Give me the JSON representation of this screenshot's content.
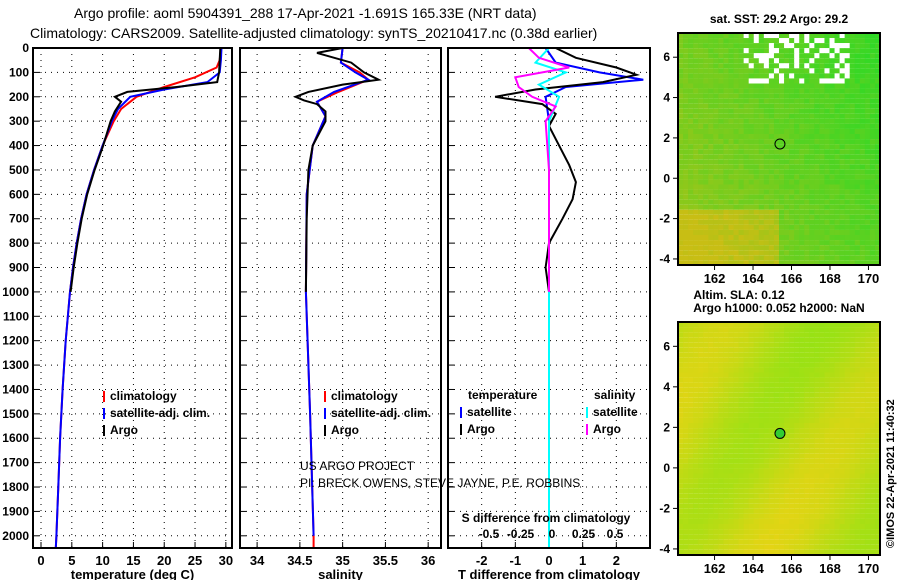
{
  "header": {
    "line1": "Argo profile: aoml 5904391_288 17-Apr-2021 -1.691S 165.33E (NRT data)",
    "line2": "Climatology: CARS2009. Satellite-adjusted climatology: synTS_20210417.nc (0.38d earlier)"
  },
  "credit": "©IMOS 22-Apr-2021 11:40:32",
  "project": {
    "line1": "US ARGO PROJECT",
    "line2": "PI: BRECK OWENS, STEVE JAYNE, P.E. ROBBINS"
  },
  "colors": {
    "climatology": "#ff0000",
    "satellite": "#0000ff",
    "argo": "#000000",
    "sat_s": "#00ffff",
    "argo_s": "#ff00ff"
  },
  "chart_data": [
    {
      "type": "line",
      "name": "temperature",
      "xlabel": "temperature (deg C)",
      "xlim": [
        -1.3,
        31
      ],
      "ylim": [
        2050,
        0
      ],
      "xticks": [
        0,
        5,
        10,
        15,
        20,
        25,
        30
      ],
      "yticks": [
        0,
        100,
        200,
        300,
        400,
        500,
        600,
        700,
        800,
        900,
        1000,
        1100,
        1200,
        1300,
        1400,
        1500,
        1600,
        1700,
        1800,
        1900,
        2000
      ],
      "legend": [
        "climatology",
        "satellite-adj. clim.",
        "Argo"
      ],
      "series": [
        {
          "name": "climatology",
          "color": "#ff0000",
          "depth": [
            0,
            50,
            80,
            120,
            160,
            200,
            250,
            300,
            400,
            500,
            600,
            700,
            800,
            900,
            1000,
            1200,
            1400,
            1600,
            1800,
            2000,
            2050
          ],
          "values": [
            29.2,
            29,
            28.5,
            25,
            20,
            15.5,
            13,
            11.8,
            10,
            8.6,
            7.4,
            6.5,
            5.8,
            5.2,
            4.7,
            4,
            3.5,
            3.1,
            2.8,
            2.5,
            2.4
          ]
        },
        {
          "name": "satellite-adj. clim.",
          "color": "#0000ff",
          "depth": [
            0,
            50,
            100,
            140,
            170,
            200,
            250,
            300,
            400,
            500,
            600,
            700,
            800,
            900,
            1000,
            1200,
            1400,
            1600,
            1800,
            2000,
            2050
          ],
          "values": [
            29.3,
            29.2,
            29,
            27,
            20,
            14.5,
            12.5,
            11.5,
            10,
            8.6,
            7.4,
            6.5,
            5.8,
            5.2,
            4.7,
            4,
            3.5,
            3.1,
            2.8,
            2.5,
            2.4
          ]
        },
        {
          "name": "Argo",
          "color": "#000000",
          "depth": [
            0,
            50,
            100,
            140,
            160,
            180,
            200,
            220,
            260,
            300,
            400,
            500,
            600,
            700,
            800,
            900,
            1000
          ],
          "values": [
            29.1,
            29,
            28.9,
            28.6,
            22,
            14,
            12,
            13,
            12,
            11.3,
            10.1,
            8.7,
            7.5,
            6.6,
            5.9,
            5.3,
            4.8
          ]
        }
      ]
    },
    {
      "type": "line",
      "name": "salinity",
      "xlabel": "salinity",
      "xlim": [
        33.8,
        36.15
      ],
      "ylim": [
        2050,
        0
      ],
      "xticks": [
        34,
        34.5,
        35,
        35.5,
        36
      ],
      "legend": [
        "climatology",
        "satellite-adj. clim.",
        "Argo"
      ],
      "series": [
        {
          "name": "climatology",
          "color": "#ff0000",
          "depth": [
            0,
            60,
            100,
            130,
            180,
            220,
            280,
            400,
            600,
            1000,
            1500,
            2000,
            2050
          ],
          "values": [
            35.0,
            34.98,
            35.2,
            35.3,
            34.95,
            34.7,
            34.8,
            34.65,
            34.58,
            34.57,
            34.62,
            34.66,
            34.66
          ]
        },
        {
          "name": "satellite-adj. clim.",
          "color": "#0000ff",
          "depth": [
            0,
            60,
            100,
            130,
            180,
            220,
            280,
            400,
            600,
            1000,
            1500,
            2000
          ],
          "values": [
            35.0,
            34.98,
            35.15,
            35.3,
            34.9,
            34.7,
            34.8,
            34.65,
            34.58,
            34.57,
            34.62,
            34.66
          ]
        },
        {
          "name": "Argo",
          "color": "#000000",
          "depth": [
            0,
            20,
            60,
            100,
            130,
            150,
            180,
            200,
            215,
            230,
            260,
            300,
            400,
            500,
            700,
            1000
          ],
          "values": [
            35.0,
            34.7,
            35.1,
            35.25,
            35.42,
            35.0,
            34.6,
            34.45,
            34.55,
            34.7,
            34.8,
            34.8,
            34.65,
            34.6,
            34.58,
            34.57
          ]
        }
      ]
    },
    {
      "type": "line",
      "name": "difference",
      "xlabel": "T difference from climatology",
      "xlim": [
        -3,
        3
      ],
      "ylim": [
        2050,
        0
      ],
      "xticks": [
        -2,
        -1,
        0,
        1,
        2
      ],
      "xlabel2": "S difference from climatology",
      "xticks2": [
        "-0.5",
        "-0.25",
        "0",
        "0.25",
        "0.5"
      ],
      "legend_t_title": "temperature",
      "legend_s_title": "salinity",
      "legend_t": [
        "satellite",
        "Argo"
      ],
      "legend_s": [
        "satellite",
        "Argo"
      ],
      "series": [
        {
          "name": "T satellite",
          "color": "#0000ff",
          "depth": [
            0,
            60,
            100,
            130,
            160,
            200,
            300,
            500,
            1000,
            2050
          ],
          "values": [
            -0.1,
            0.2,
            1.5,
            2.8,
            0.5,
            -0.1,
            0,
            0,
            0,
            0
          ]
        },
        {
          "name": "T Argo",
          "color": "#000000",
          "depth": [
            0,
            40,
            80,
            110,
            140,
            170,
            200,
            230,
            270,
            320,
            400,
            480,
            550,
            620,
            700,
            800,
            900,
            1000
          ],
          "values": [
            0.2,
            0.8,
            2,
            2.6,
            1.6,
            -0.4,
            -1.6,
            -0.2,
            0.2,
            0,
            0.3,
            0.6,
            0.8,
            0.7,
            0.4,
            0,
            -0.1,
            0
          ]
        },
        {
          "name": "S satellite",
          "color": "#00ffff",
          "depth": [
            0,
            60,
            100,
            150,
            200,
            300,
            500,
            1000,
            2050
          ],
          "values": [
            0,
            -0.4,
            0.5,
            -0.3,
            0.3,
            0,
            0,
            0,
            0
          ]
        },
        {
          "name": "S Argo",
          "color": "#ff00ff",
          "depth": [
            0,
            40,
            80,
            120,
            160,
            200,
            240,
            300,
            500,
            800,
            1000
          ],
          "values": [
            -0.6,
            -0.3,
            0.6,
            -1.0,
            -0.9,
            -0.5,
            0.2,
            -0.1,
            0,
            0,
            0
          ]
        }
      ]
    },
    {
      "type": "heatmap",
      "name": "sst-map",
      "title": "sat. SST: 29.2 Argo: 29.2",
      "xlim": [
        160.1,
        170.6
      ],
      "ylim": [
        -4.3,
        7.2
      ],
      "xticks": [
        162,
        164,
        166,
        168,
        170
      ],
      "yticks": [
        -4,
        -2,
        0,
        2,
        4,
        6
      ],
      "marker": [
        165.4,
        1.7
      ],
      "footer": "Altim. SLA: 0.12"
    },
    {
      "type": "heatmap",
      "name": "sla-map",
      "title": "Argo h1000: 0.052 h2000: NaN",
      "xlim": [
        160.1,
        170.6
      ],
      "ylim": [
        -4.3,
        7.2
      ],
      "xticks": [
        162,
        164,
        166,
        168,
        170
      ],
      "yticks": [
        -4,
        -2,
        0,
        2,
        4,
        6
      ],
      "marker": [
        165.4,
        1.7
      ]
    }
  ]
}
